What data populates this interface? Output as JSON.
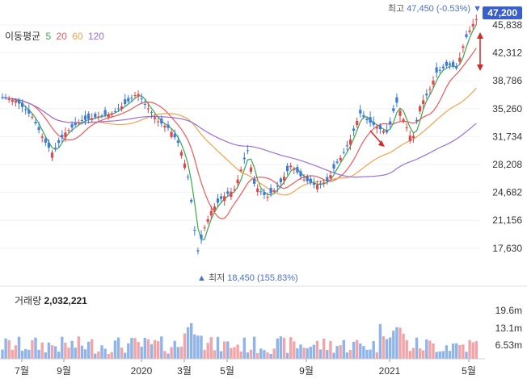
{
  "chart_data": {
    "type": "candlestick",
    "legend": {
      "title": "이동평균",
      "items": [
        {
          "label": "5",
          "color": "#3aa84a"
        },
        {
          "label": "20",
          "color": "#e85a5a"
        },
        {
          "label": "60",
          "color": "#f0a24a"
        },
        {
          "label": "120",
          "color": "#9b6fd6"
        }
      ]
    },
    "price_axis": {
      "ticks": [
        "45,838",
        "42,312",
        "38,786",
        "35,260",
        "31,734",
        "28,208",
        "24,682",
        "21,156",
        "17,630"
      ],
      "ylim": [
        17630,
        47450
      ]
    },
    "x_axis": {
      "ticks": [
        "7월",
        "9월",
        "2020",
        "3월",
        "5월",
        "9월",
        "2021",
        "5월"
      ]
    },
    "high_note": {
      "label": "최고",
      "value": "47,450 (-0.53%)"
    },
    "low_note": {
      "label": "최저",
      "value": "18,450 (155.83%)"
    },
    "current_price": "47,200",
    "volume": {
      "label": "거래량",
      "value": "2,032,221",
      "ticks": [
        "19.6m",
        "13.1m",
        "6.53m"
      ]
    },
    "series": [
      {
        "name": "5",
        "color": "#3aa84a"
      },
      {
        "name": "20",
        "color": "#e85a5a"
      },
      {
        "name": "60",
        "color": "#f0a24a"
      },
      {
        "name": "120",
        "color": "#9b6fd6"
      }
    ],
    "colors": {
      "up": "#e0474c",
      "down": "#3d7bd9",
      "vol_up": "#f2a5a8",
      "vol_down": "#8fb4ea",
      "badge": "#3a5fc8"
    }
  }
}
